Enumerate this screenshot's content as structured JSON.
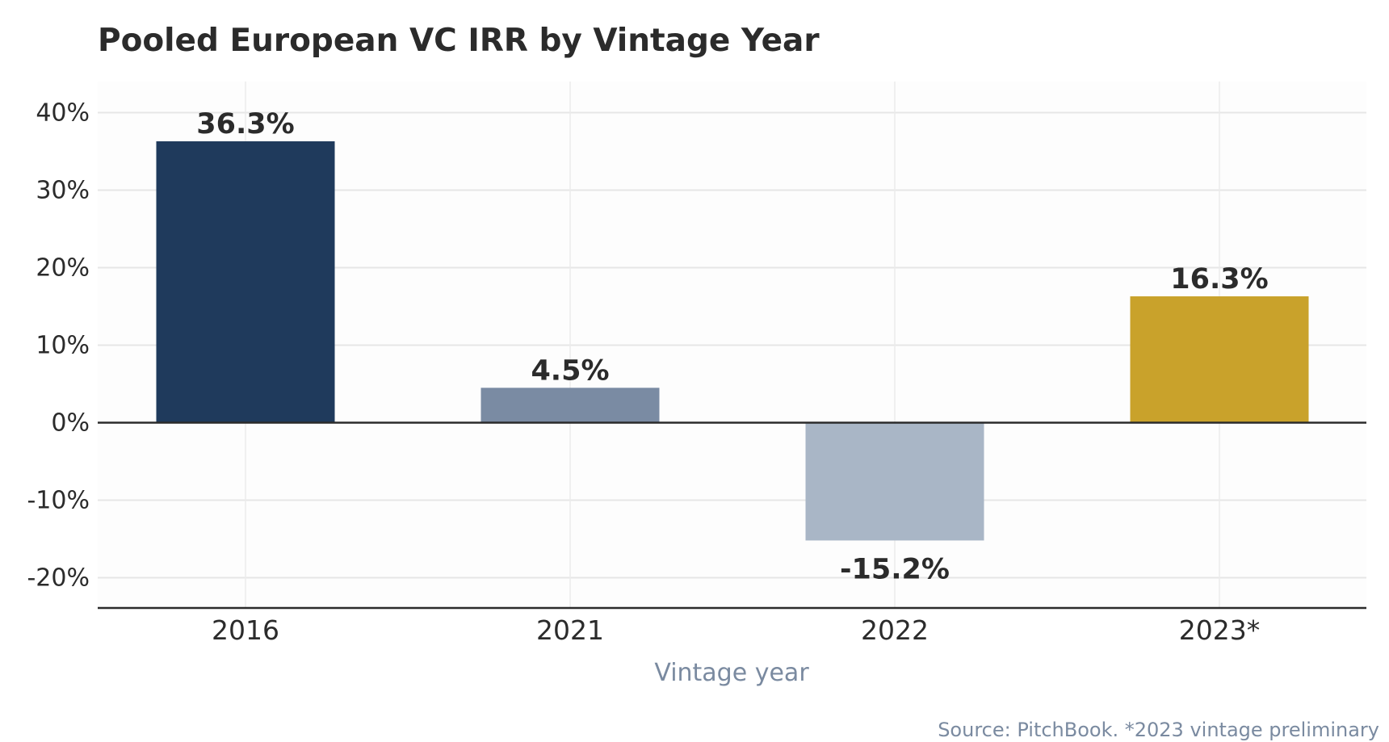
{
  "chart_data": {
    "type": "bar",
    "title": "Pooled European VC IRR by Vintage Year",
    "xlabel": "Vintage year",
    "ylabel": "",
    "categories": [
      "2016",
      "2021",
      "2022",
      "2023*"
    ],
    "values": [
      36.3,
      4.5,
      -15.2,
      16.3
    ],
    "value_labels": [
      "36.3%",
      "4.5%",
      "-15.2%",
      "16.3%"
    ],
    "bar_colors": [
      "#1f3a5c",
      "#7a8ba3",
      "#a9b6c6",
      "#c9a22b"
    ],
    "ylim": [
      -24,
      44
    ],
    "yticks": [
      40,
      30,
      20,
      10,
      0,
      -10,
      -20
    ],
    "ytick_labels": [
      "40%",
      "30%",
      "20%",
      "10%",
      "0%",
      "-10%",
      "-20%"
    ],
    "grid": true,
    "legend": "none",
    "source_note": "Source: PitchBook. *2023 vintage preliminary"
  }
}
